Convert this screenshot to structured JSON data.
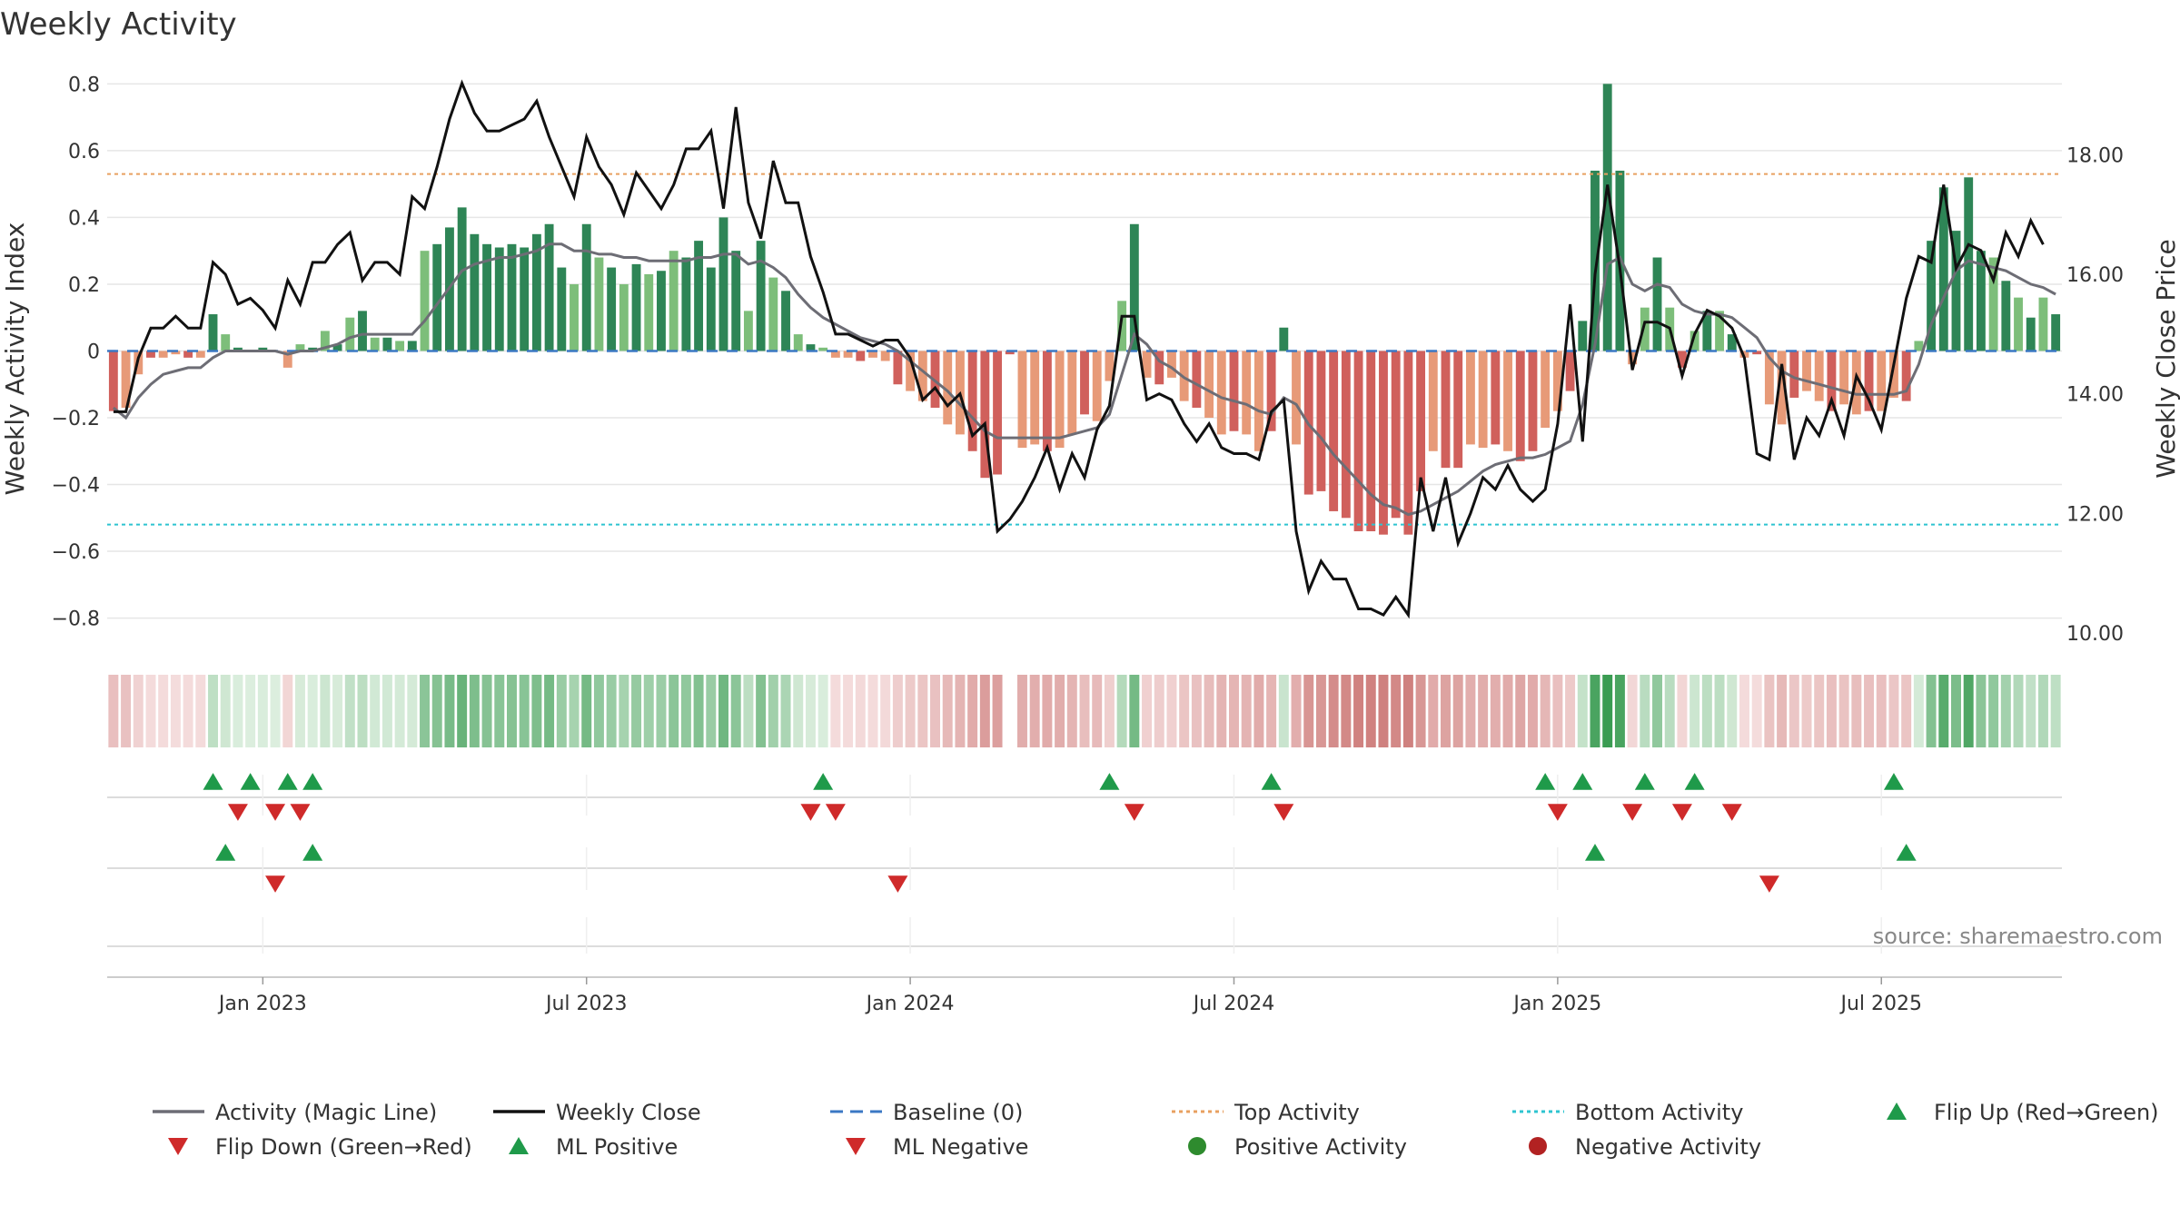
{
  "chart_data": {
    "type": "bar",
    "title": "Weekly Activity",
    "ylabel": "Weekly Activity Index",
    "y2label": "Weekly Close Price",
    "ylim": [
      -0.88,
      0.82
    ],
    "y2lim": [
      9.8,
      19.3
    ],
    "yticks": [
      0.8,
      0.6,
      0.4,
      0.2,
      0,
      -0.2,
      -0.4,
      -0.6,
      -0.8
    ],
    "ytick_labels": [
      "0.8",
      "0.6",
      "0.4",
      "0.2",
      "0",
      "−0.2",
      "−0.4",
      "−0.6",
      "−0.8"
    ],
    "y2ticks": [
      18,
      16,
      14,
      12,
      10
    ],
    "y2tick_labels": [
      "18.00",
      "16.00",
      "14.00",
      "12.00",
      "10.00"
    ],
    "xticks": [
      12,
      38,
      64,
      90,
      116,
      142
    ],
    "xtick_labels": [
      "Jan 2023",
      "Jul 2023",
      "Jan 2024",
      "Jul 2024",
      "Jan 2025",
      "Jul 2025"
    ],
    "top_activity": 0.53,
    "bottom_activity": -0.52,
    "activity": [
      -0.18,
      -0.17,
      -0.07,
      -0.02,
      -0.02,
      -0.01,
      -0.02,
      -0.02,
      0.11,
      0.05,
      0.01,
      0,
      0.01,
      0,
      -0.05,
      0.02,
      0.01,
      0.06,
      0.02,
      0.1,
      0.12,
      0.04,
      0.04,
      0.03,
      0.03,
      0.3,
      0.32,
      0.37,
      0.43,
      0.35,
      0.32,
      0.31,
      0.32,
      0.31,
      0.35,
      0.38,
      0.25,
      0.2,
      0.38,
      0.28,
      0.25,
      0.2,
      0.26,
      0.23,
      0.24,
      0.3,
      0.28,
      0.33,
      0.25,
      0.4,
      0.3,
      0.12,
      0.33,
      0.22,
      0.18,
      0.05,
      0.02,
      0.01,
      -0.02,
      -0.02,
      -0.03,
      -0.02,
      -0.03,
      -0.1,
      -0.12,
      -0.15,
      -0.17,
      -0.22,
      -0.25,
      -0.3,
      -0.38,
      -0.37,
      -0.01,
      -0.29,
      -0.28,
      -0.3,
      -0.29,
      -0.25,
      -0.19,
      -0.21,
      -0.09,
      0.15,
      0.38,
      -0.08,
      -0.1,
      -0.08,
      -0.15,
      -0.17,
      -0.2,
      -0.25,
      -0.24,
      -0.25,
      -0.3,
      -0.24,
      0.07,
      -0.28,
      -0.43,
      -0.42,
      -0.48,
      -0.5,
      -0.54,
      -0.54,
      -0.55,
      -0.5,
      -0.55,
      -0.42,
      -0.3,
      -0.35,
      -0.35,
      -0.28,
      -0.29,
      -0.28,
      -0.3,
      -0.33,
      -0.3,
      -0.23,
      -0.18,
      -0.12,
      0.09,
      0.54,
      0.8,
      0.54,
      -0.04,
      0.13,
      0.28,
      0.13,
      -0.05,
      0.06,
      0.12,
      0.12,
      0.05,
      -0.02,
      -0.01,
      -0.16,
      -0.22,
      -0.14,
      -0.12,
      -0.15,
      -0.18,
      -0.16,
      -0.19,
      -0.18,
      -0.18,
      -0.14,
      -0.15,
      0.03,
      0.33,
      0.49,
      0.36,
      0.52,
      0.3,
      0.28,
      0.21,
      0.16,
      0.1,
      0.16,
      0.11
    ],
    "magic_line": [
      -0.17,
      -0.2,
      -0.14,
      -0.1,
      -0.07,
      -0.06,
      -0.05,
      -0.05,
      -0.02,
      0,
      0,
      0,
      0,
      0,
      -0.01,
      0,
      0,
      0.01,
      0.02,
      0.04,
      0.05,
      0.05,
      0.05,
      0.05,
      0.05,
      0.09,
      0.14,
      0.19,
      0.24,
      0.26,
      0.27,
      0.28,
      0.28,
      0.29,
      0.3,
      0.32,
      0.32,
      0.3,
      0.3,
      0.29,
      0.29,
      0.28,
      0.28,
      0.27,
      0.27,
      0.27,
      0.27,
      0.28,
      0.28,
      0.29,
      0.29,
      0.26,
      0.27,
      0.25,
      0.22,
      0.17,
      0.13,
      0.1,
      0.08,
      0.06,
      0.04,
      0.03,
      0.02,
      0,
      -0.03,
      -0.06,
      -0.09,
      -0.12,
      -0.16,
      -0.2,
      -0.24,
      -0.26,
      -0.26,
      -0.26,
      -0.26,
      -0.26,
      -0.26,
      -0.25,
      -0.24,
      -0.23,
      -0.19,
      -0.07,
      0.05,
      0.02,
      -0.03,
      -0.05,
      -0.08,
      -0.1,
      -0.12,
      -0.14,
      -0.15,
      -0.16,
      -0.18,
      -0.19,
      -0.14,
      -0.16,
      -0.22,
      -0.26,
      -0.31,
      -0.35,
      -0.39,
      -0.43,
      -0.46,
      -0.47,
      -0.49,
      -0.48,
      -0.46,
      -0.44,
      -0.42,
      -0.39,
      -0.36,
      -0.34,
      -0.33,
      -0.32,
      -0.32,
      -0.31,
      -0.29,
      -0.27,
      -0.16,
      0.02,
      0.26,
      0.28,
      0.2,
      0.18,
      0.2,
      0.19,
      0.14,
      0.12,
      0.11,
      0.11,
      0.1,
      0.07,
      0.04,
      -0.02,
      -0.06,
      -0.08,
      -0.09,
      -0.1,
      -0.11,
      -0.12,
      -0.13,
      -0.13,
      -0.13,
      -0.13,
      -0.12,
      -0.04,
      0.08,
      0.16,
      0.24,
      0.27,
      0.26,
      0.25,
      0.24,
      0.22,
      0.2,
      0.19,
      0.17
    ],
    "close": [
      13.7,
      13.7,
      14.6,
      15.1,
      15.1,
      15.3,
      15.1,
      15.1,
      16.2,
      16.0,
      15.5,
      15.6,
      15.4,
      15.1,
      15.9,
      15.5,
      16.2,
      16.2,
      16.5,
      16.7,
      15.9,
      16.2,
      16.2,
      16.0,
      17.3,
      17.1,
      17.8,
      18.6,
      19.2,
      18.7,
      18.4,
      18.4,
      18.5,
      18.6,
      18.9,
      18.3,
      17.8,
      17.3,
      18.3,
      17.8,
      17.5,
      17.0,
      17.7,
      17.4,
      17.1,
      17.5,
      18.1,
      18.1,
      18.4,
      17.1,
      18.8,
      17.2,
      16.6,
      17.9,
      17.2,
      17.2,
      16.3,
      15.7,
      15.0,
      15.0,
      14.9,
      14.8,
      14.9,
      14.9,
      14.6,
      13.9,
      14.1,
      13.8,
      14.0,
      13.3,
      13.5,
      11.7,
      11.9,
      12.2,
      12.6,
      13.1,
      12.4,
      13.0,
      12.6,
      13.4,
      13.8,
      15.3,
      15.3,
      13.9,
      14.0,
      13.9,
      13.5,
      13.2,
      13.5,
      13.1,
      13.0,
      13.0,
      12.9,
      13.7,
      13.9,
      11.7,
      10.7,
      11.2,
      10.9,
      10.9,
      10.4,
      10.4,
      10.3,
      10.6,
      10.3,
      12.6,
      11.7,
      12.6,
      11.5,
      12.0,
      12.6,
      12.4,
      12.8,
      12.4,
      12.2,
      12.4,
      13.5,
      15.5,
      13.2,
      16.0,
      17.5,
      16.1,
      14.4,
      15.2,
      15.2,
      15.1,
      14.3,
      15.0,
      15.4,
      15.3,
      15.1,
      14.6,
      13.0,
      12.9,
      14.5,
      12.9,
      13.6,
      13.3,
      13.9,
      13.3,
      14.3,
      13.9,
      13.4,
      14.5,
      15.6,
      16.3,
      16.2,
      17.5,
      16.1,
      16.5,
      16.4,
      15.9,
      16.7,
      16.3,
      16.9,
      16.5
    ],
    "heat_gaps": [
      72
    ],
    "flip_up": [
      8,
      11,
      14,
      16,
      57,
      80,
      93,
      115,
      118,
      123,
      127,
      143
    ],
    "flip_down": [
      10,
      13,
      15,
      56,
      58,
      82,
      94,
      116,
      122,
      126,
      130
    ],
    "ml_positive": [
      9,
      16,
      119,
      144
    ],
    "ml_negative": [
      13,
      63,
      133
    ],
    "source": "source: sharemaestro.com",
    "legend": [
      {
        "label": "Activity (Magic Line)",
        "kind": "line",
        "color": "#6d6d75"
      },
      {
        "label": "Weekly Close",
        "kind": "line",
        "color": "#111111"
      },
      {
        "label": "Baseline (0)",
        "kind": "dash",
        "color": "#3b78c4"
      },
      {
        "label": "Top Activity",
        "kind": "dot-orange",
        "color": "#e8a060"
      },
      {
        "label": "Bottom Activity",
        "kind": "dot-cyan",
        "color": "#2ec4d0"
      },
      {
        "label": "Flip Up (Red→Green)",
        "kind": "tri-up",
        "color": "#1f9a4a"
      },
      {
        "label": "Flip Down (Green→Red)",
        "kind": "tri-down",
        "color": "#cf2a2a"
      },
      {
        "label": "ML Positive",
        "kind": "tri-up",
        "color": "#1f9a4a"
      },
      {
        "label": "ML Negative",
        "kind": "tri-down",
        "color": "#cf2a2a"
      },
      {
        "label": "Positive Activity",
        "kind": "circle",
        "color": "#2e8b2e"
      },
      {
        "label": "Negative Activity",
        "kind": "circle",
        "color": "#b22222"
      }
    ]
  }
}
